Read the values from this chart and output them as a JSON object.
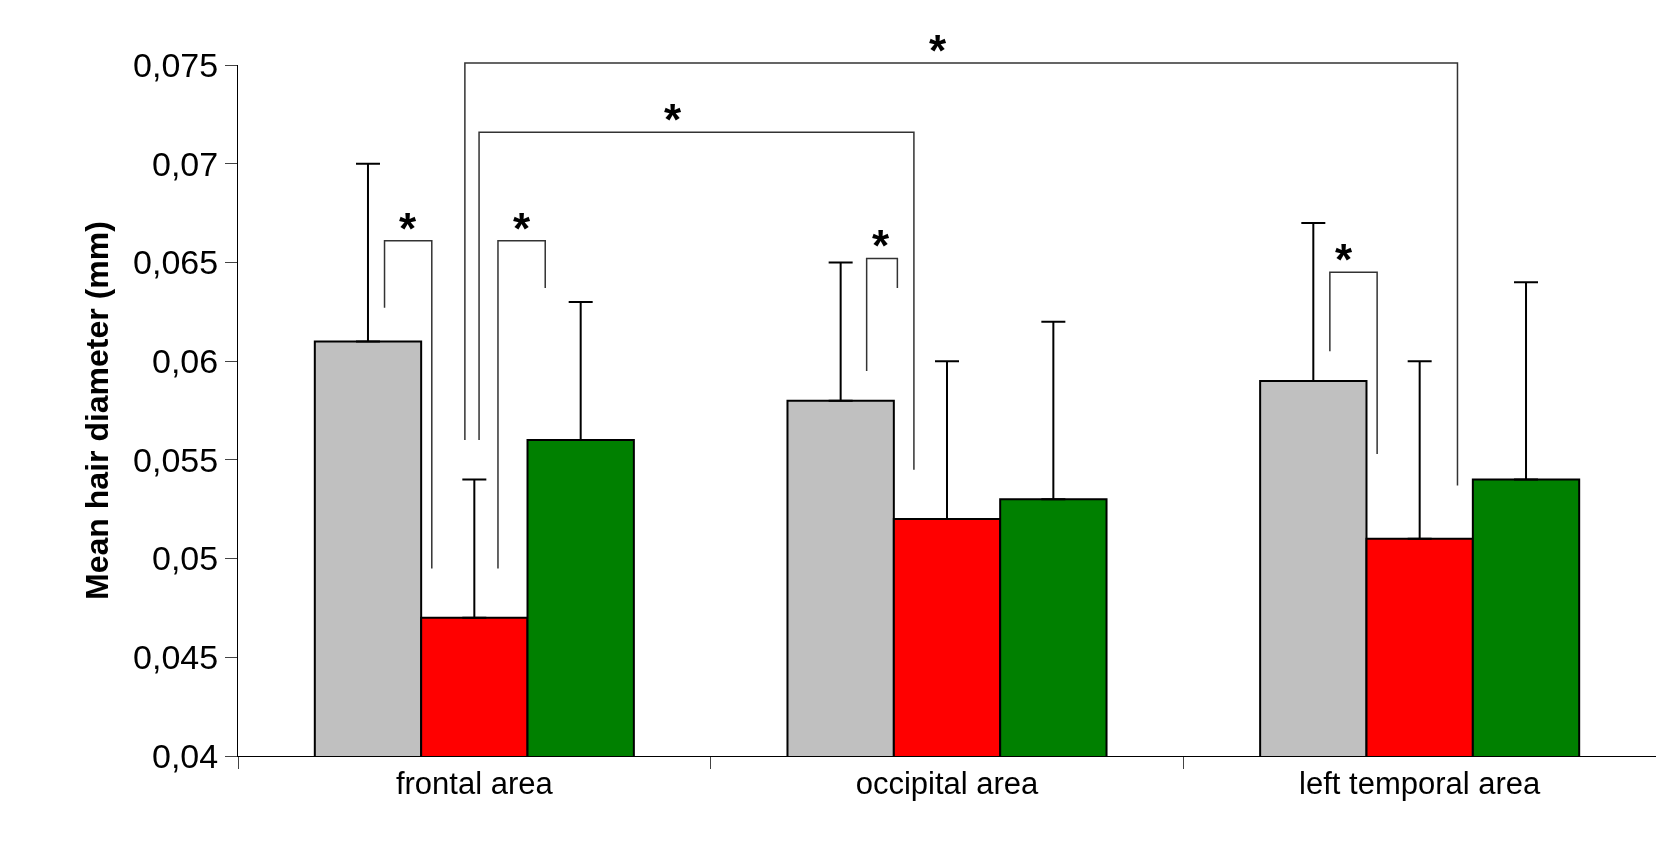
{
  "chart_data": {
    "type": "bar",
    "ylabel": "Mean hair diameter (mm)",
    "categories": [
      "frontal area",
      "occipital area",
      "left temporal area"
    ],
    "series": [
      {
        "color": "#c0c0c0",
        "values": [
          0.061,
          0.058,
          0.059
        ],
        "errors": [
          [
            0.061,
            0.07
          ],
          [
            0.058,
            0.065
          ],
          [
            0.059,
            0.067
          ]
        ]
      },
      {
        "color": "#ff0000",
        "values": [
          0.047,
          0.052,
          0.051
        ],
        "errors": [
          [
            0.047,
            0.054
          ],
          [
            0.052,
            0.06
          ],
          [
            0.051,
            0.06
          ]
        ]
      },
      {
        "color": "#008000",
        "values": [
          0.056,
          0.053,
          0.054
        ],
        "errors": [
          [
            0.056,
            0.063
          ],
          [
            0.053,
            0.062
          ],
          [
            0.054,
            0.064
          ]
        ]
      }
    ],
    "ylim": [
      0.04,
      0.075
    ],
    "yticks": [
      {
        "value": 0.04,
        "label": "0,04"
      },
      {
        "value": 0.045,
        "label": "0,045"
      },
      {
        "value": 0.05,
        "label": "0,05"
      },
      {
        "value": 0.055,
        "label": "0,055"
      },
      {
        "value": 0.06,
        "label": "0,06"
      },
      {
        "value": 0.065,
        "label": "0,065"
      },
      {
        "value": 0.07,
        "label": "0,07"
      },
      {
        "value": 0.075,
        "label": "0,075"
      }
    ],
    "grid": false,
    "annotations": [
      "*",
      "*",
      "*",
      "*",
      "*",
      "*"
    ]
  }
}
